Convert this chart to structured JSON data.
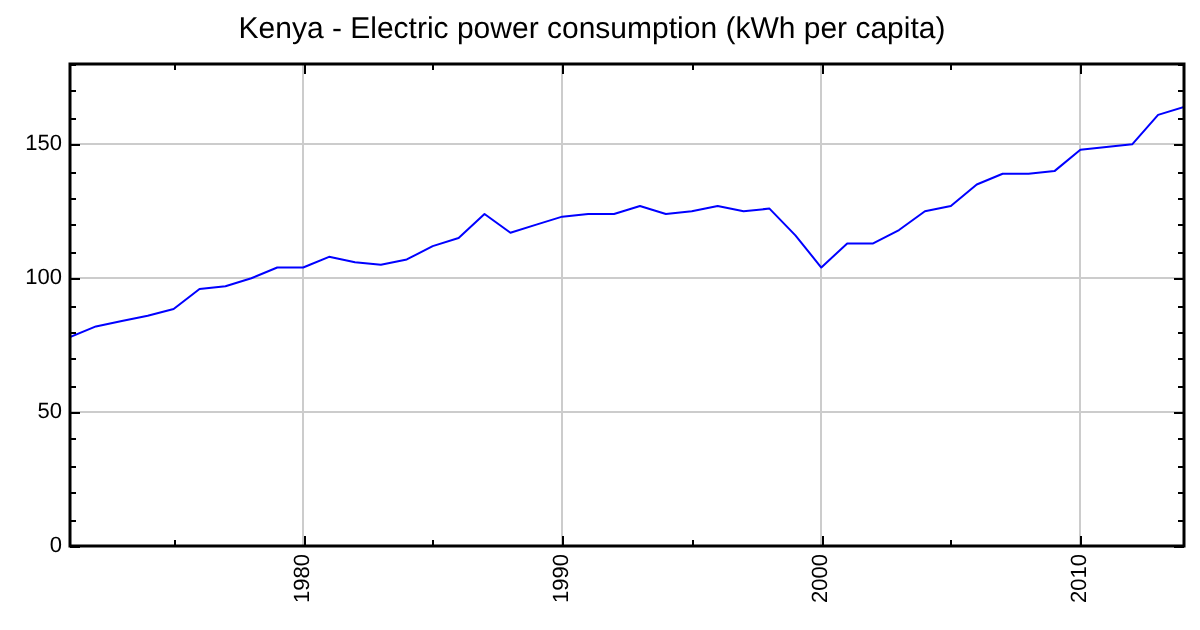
{
  "chart_data": {
    "type": "line",
    "title": "Kenya - Electric power consumption (kWh per capita)",
    "x": [
      1971,
      1972,
      1973,
      1974,
      1975,
      1976,
      1977,
      1978,
      1979,
      1980,
      1981,
      1982,
      1983,
      1984,
      1985,
      1986,
      1987,
      1988,
      1989,
      1990,
      1991,
      1992,
      1993,
      1994,
      1995,
      1996,
      1997,
      1998,
      1999,
      2000,
      2001,
      2002,
      2003,
      2004,
      2005,
      2006,
      2007,
      2008,
      2009,
      2010,
      2011,
      2012,
      2013,
      2014
    ],
    "series": [
      {
        "color": "#0000ff",
        "values": [
          78,
          82,
          84,
          86,
          88.5,
          96,
          97,
          100,
          104,
          104,
          108,
          106,
          105,
          107,
          112,
          115,
          124,
          117,
          120,
          123,
          124,
          124,
          127,
          124,
          125,
          127,
          125,
          126,
          116,
          104,
          113,
          113,
          118,
          125,
          127,
          135,
          139,
          139,
          140,
          148,
          149,
          150,
          161,
          164
        ]
      }
    ],
    "xlim": [
      1971,
      2014
    ],
    "xticks": [
      {
        "value": 1975,
        "label": null
      },
      1980,
      {
        "value": 1985,
        "label": null
      },
      1990,
      {
        "value": 1995,
        "label": null
      },
      2000,
      {
        "value": 2005,
        "label": null
      },
      2010
    ],
    "ylim": [
      0,
      180
    ],
    "yticks": [
      0,
      {
        "value": 10,
        "label": null
      },
      {
        "value": 20,
        "label": null
      },
      {
        "value": 30,
        "label": null
      },
      {
        "value": 40,
        "label": null
      },
      50,
      {
        "value": 60,
        "label": null
      },
      {
        "value": 70,
        "label": null
      },
      {
        "value": 80,
        "label": null
      },
      {
        "value": 90,
        "label": null
      },
      100,
      {
        "value": 110,
        "label": null
      },
      {
        "value": 120,
        "label": null
      },
      {
        "value": 130,
        "label": null
      },
      {
        "value": 140,
        "label": null
      },
      150,
      {
        "value": 160,
        "label": null
      },
      {
        "value": 170,
        "label": null
      },
      {
        "value": 180,
        "label": null
      }
    ],
    "grid": true,
    "legend": false,
    "marker": "none",
    "line_style": "solid"
  }
}
